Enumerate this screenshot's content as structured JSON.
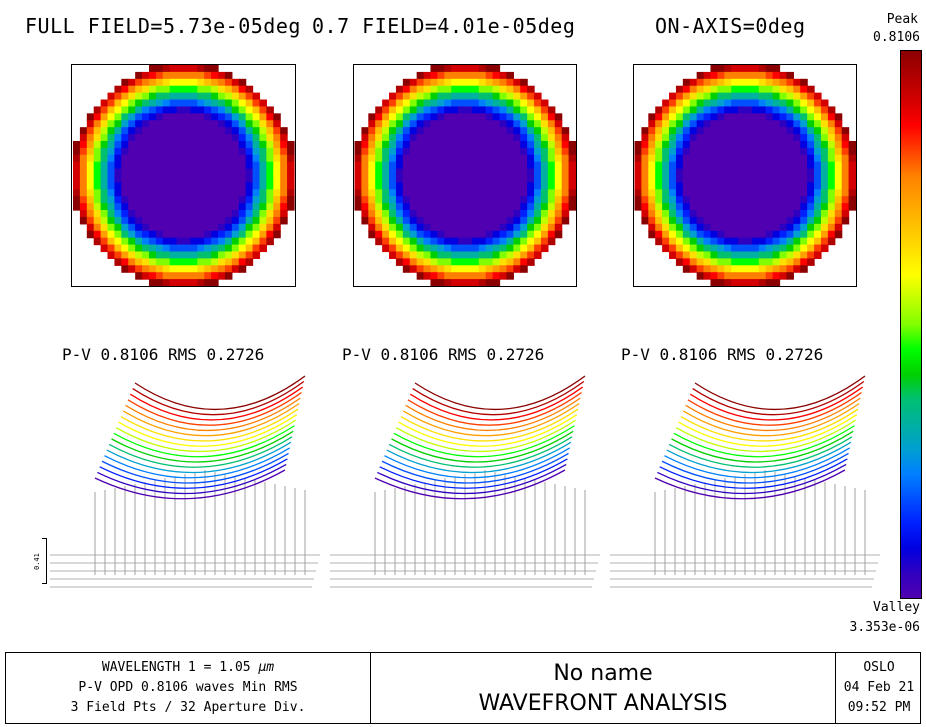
{
  "titles": {
    "full_field": "FULL FIELD=5.73e-05deg",
    "field_07": "0.7 FIELD=4.01e-05deg",
    "on_axis": "ON-AXIS=0deg"
  },
  "plots": [
    {
      "pv_label": "P-V 0.8106 RMS 0.2726"
    },
    {
      "pv_label": "P-V 0.8106 RMS 0.2726"
    },
    {
      "pv_label": "P-V 0.8106 RMS 0.2726"
    }
  ],
  "colorbar": {
    "peak_label": "Peak",
    "peak_value": "0.8106",
    "valley_label": "Valley",
    "valley_value": "3.353e-06",
    "colors_top_to_bottom": [
      "#8b0000",
      "#b00000",
      "#d40000",
      "#ff0000",
      "#ff4000",
      "#ff8000",
      "#ffa000",
      "#ffc000",
      "#ffe000",
      "#ffff00",
      "#c0ff00",
      "#80ff00",
      "#00ff00",
      "#00d000",
      "#00c070",
      "#00b0a0",
      "#00a0d0",
      "#0080ff",
      "#0050ff",
      "#0020ff",
      "#0000e0",
      "#3000c0",
      "#5000b0"
    ]
  },
  "scale_bar": {
    "label": "0.41"
  },
  "footer": {
    "left": {
      "line1_prefix": "WAVELENGTH 1 = 1.05 ",
      "line1_unit": "µm",
      "line2": "P-V OPD 0.8106 waves Min RMS",
      "line3": "3 Field Pts / 32 Aperture Div."
    },
    "center": {
      "line1": "No name",
      "line2": "WAVEFRONT ANALYSIS"
    },
    "right": {
      "line1": "OSLO",
      "line2": "04 Feb 21",
      "line3": "09:52 PM"
    }
  }
}
